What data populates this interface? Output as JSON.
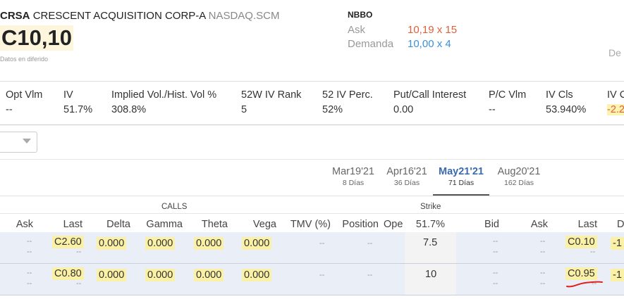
{
  "header": {
    "symbol": "CRSA",
    "company": "CRESCENT ACQUISITION CORP-A",
    "exchange": "NASDAQ.SCM",
    "price": "C10,10",
    "delayed_note": "Datos en diferido",
    "cut_label": "De"
  },
  "nbbo": {
    "title": "NBBO",
    "ask_label": "Ask",
    "ask_value": "10,19  x  15",
    "bid_label": "Demanda",
    "bid_value": "10,00  x  4"
  },
  "stats": [
    {
      "label": "Opt Vlm",
      "value": "--"
    },
    {
      "label": "IV",
      "value": "51.7%"
    },
    {
      "label": "Implied Vol./Hist. Vol %",
      "value": "308.8%"
    },
    {
      "label": "52W IV Rank",
      "value": "5"
    },
    {
      "label": "52 IV Perc.",
      "value": "52%"
    },
    {
      "label": "Put/Call Interest",
      "value": "0.00"
    },
    {
      "label": "P/C Vlm",
      "value": "--"
    },
    {
      "label": "IV Cls",
      "value": "53.940%"
    },
    {
      "label": "IV C",
      "value": "-2.2"
    }
  ],
  "expirations": [
    {
      "date": "Mar19'21",
      "days": "8 Días"
    },
    {
      "date": "Apr16'21",
      "days": "36 Días"
    },
    {
      "date": "May21'21",
      "days": "71 Días"
    },
    {
      "date": "Aug20'21",
      "days": "162 Días"
    }
  ],
  "selected_expiration": "May21'21",
  "table": {
    "calls_label": "CALLS",
    "strike_label": "Strike",
    "headers": [
      "Ask",
      "Last",
      "Delta",
      "Gamma",
      "Theta",
      "Vega",
      "TMV (%)",
      "Position",
      "Ope",
      "51.7%",
      "Bid",
      "Ask",
      "Last",
      "D"
    ],
    "rows": [
      {
        "call_ask": "--",
        "call_ask2": "--",
        "call_last": "C2.60",
        "call_last2": "--",
        "delta": "0.000",
        "gamma": "0.000",
        "theta": "0.000",
        "vega": "0.000",
        "tmv": "--",
        "position": "--",
        "strike": "7.5",
        "put_bid": "--",
        "put_bid2": "--",
        "put_ask": "--",
        "put_ask2": "--",
        "put_last": "C0.10",
        "put_last2": "--",
        "put_delta": "-1"
      },
      {
        "call_ask": "--",
        "call_ask2": "--",
        "call_last": "C0.80",
        "call_last2": "--",
        "delta": "0.000",
        "gamma": "0.000",
        "theta": "0.000",
        "vega": "0.000",
        "tmv": "--",
        "position": "--",
        "strike": "10",
        "put_bid": "--",
        "put_bid2": "--",
        "put_ask": "--",
        "put_ask2": "--",
        "put_last": "C0.95",
        "put_last2": "--",
        "put_delta": "-1"
      }
    ]
  },
  "colors": {
    "highlight": "#fbf1a6",
    "row_bg": "#e9eef7",
    "ask_color": "#e0603a",
    "bid_color": "#3c8fd8",
    "active_tab": "#3a6bb0",
    "annotation": "#e0201a"
  }
}
